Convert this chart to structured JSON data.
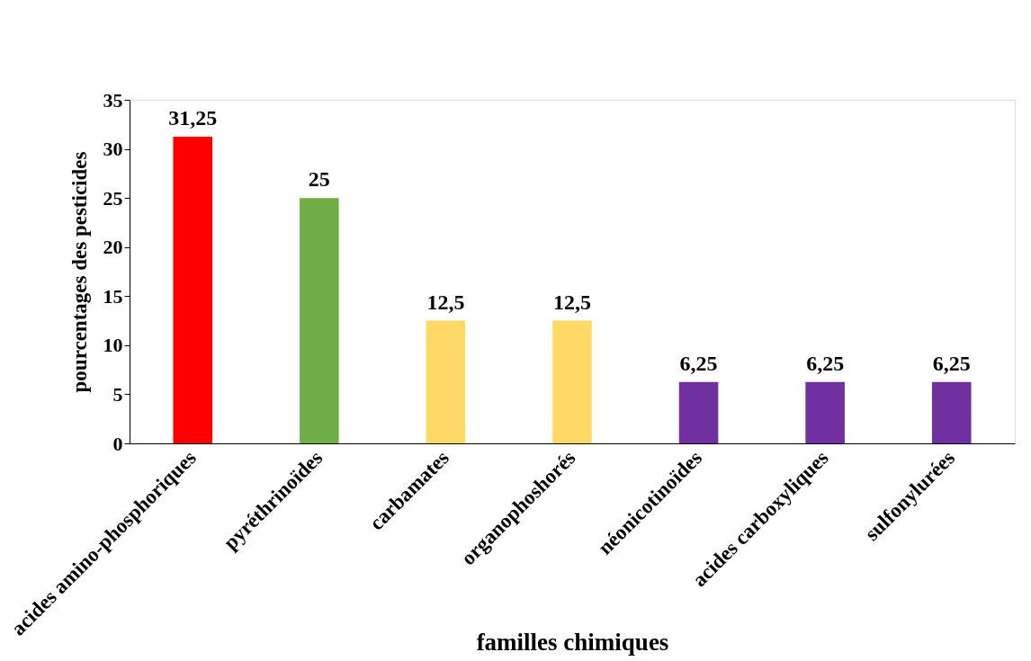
{
  "chart_data": {
    "type": "bar",
    "xlabel": "familles chimiques",
    "ylabel": "pourcentages des pesticides",
    "categories": [
      "acides amino-phosphoriques",
      "pyréthrinoïdes",
      "carbamates",
      "organophoshorés",
      "néonicotinoïdes",
      "acides carboxyliques",
      "sulfonylurées"
    ],
    "values": [
      31.25,
      25,
      12.5,
      12.5,
      6.25,
      6.25,
      6.25
    ],
    "value_labels": [
      "31,25",
      "25",
      "12,5",
      "12,5",
      "6,25",
      "6,25",
      "6,25"
    ],
    "colors": [
      "#ff0000",
      "#70ad47",
      "#ffd966",
      "#ffd966",
      "#7030a0",
      "#7030a0",
      "#7030a0"
    ],
    "ylim": [
      0,
      35
    ],
    "yticks": [
      0,
      5,
      10,
      15,
      20,
      25,
      30,
      35
    ],
    "grid": false,
    "legend": false
  }
}
